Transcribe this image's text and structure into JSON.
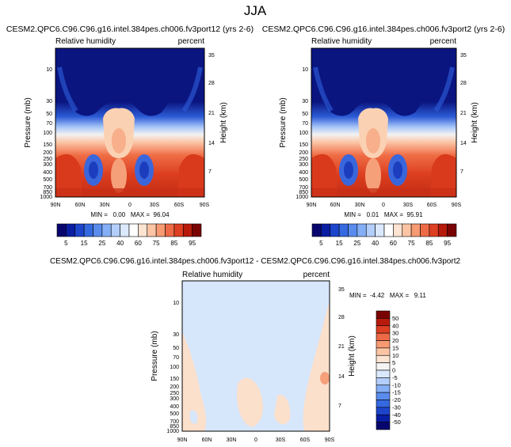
{
  "page_title": "JJA",
  "chart_data": [
    {
      "type": "heatmap",
      "title": "CESM2.QPC6.C96.C96.g16.intel.384pes.ch006.fv3port12 (yrs 2-6)",
      "left_label": "Relative humidity",
      "right_label": "percent",
      "xlabel": "",
      "ylabel": "Pressure (mb)",
      "y2label": "Height (km)",
      "x_ticks": [
        "90N",
        "60N",
        "30N",
        "0",
        "30S",
        "60S",
        "90S"
      ],
      "y_ticks": [
        "10",
        "30",
        "50",
        "70",
        "100",
        "150",
        "200",
        "250",
        "300",
        "400",
        "500",
        "700",
        "850",
        "1000"
      ],
      "y2_ticks": [
        "35",
        "28",
        "21",
        "14",
        "7"
      ],
      "ylim": [
        1000,
        3
      ],
      "stats": "MIN =   0.00   MAX =  96.04",
      "min": 0.0,
      "max": 96.04,
      "colorbar": {
        "orientation": "horizontal",
        "labels": [
          "5",
          "15",
          "25",
          "40",
          "60",
          "75",
          "85",
          "95"
        ],
        "levels": [
          5,
          10,
          15,
          20,
          25,
          30,
          40,
          50,
          60,
          70,
          75,
          80,
          85,
          90,
          95
        ]
      }
    },
    {
      "type": "heatmap",
      "title": "CESM2.QPC6.C96.C96.g16.intel.384pes.ch006.fv3port2 (yrs 2-6)",
      "left_label": "Relative humidity",
      "right_label": "percent",
      "xlabel": "",
      "ylabel": "Pressure (mb)",
      "y2label": "Height (km)",
      "x_ticks": [
        "90N",
        "60N",
        "30N",
        "0",
        "30S",
        "60S",
        "90S"
      ],
      "y_ticks": [
        "10",
        "30",
        "50",
        "70",
        "100",
        "150",
        "200",
        "250",
        "300",
        "400",
        "500",
        "700",
        "850",
        "1000"
      ],
      "y2_ticks": [
        "35",
        "28",
        "21",
        "14",
        "7"
      ],
      "ylim": [
        1000,
        3
      ],
      "stats": "MIN =   0.01   MAX =  95.91",
      "min": 0.01,
      "max": 95.91,
      "colorbar": {
        "orientation": "horizontal",
        "labels": [
          "5",
          "15",
          "25",
          "40",
          "60",
          "75",
          "85",
          "95"
        ],
        "levels": [
          5,
          10,
          15,
          20,
          25,
          30,
          40,
          50,
          60,
          70,
          75,
          80,
          85,
          90,
          95
        ]
      }
    },
    {
      "type": "heatmap",
      "title": "CESM2.QPC6.C96.C96.g16.intel.384pes.ch006.fv3port12 - CESM2.QPC6.C96.C96.g16.intel.384pes.ch006.fv3port2",
      "left_label": "Relative humidity",
      "right_label": "percent",
      "xlabel": "",
      "ylabel": "Pressure (mb)",
      "y2label": "Height (km)",
      "x_ticks": [
        "90N",
        "60N",
        "30N",
        "0",
        "30S",
        "60S",
        "90S"
      ],
      "y_ticks": [
        "10",
        "30",
        "50",
        "70",
        "100",
        "150",
        "200",
        "250",
        "300",
        "400",
        "500",
        "700",
        "850",
        "1000"
      ],
      "y2_ticks": [
        "35",
        "28",
        "21",
        "14",
        "7"
      ],
      "ylim": [
        1000,
        3
      ],
      "stats": "MIN =  -4.42   MAX =   9.11",
      "min": -4.42,
      "max": 9.11,
      "colorbar": {
        "orientation": "vertical",
        "labels": [
          "50",
          "40",
          "30",
          "20",
          "15",
          "10",
          "5",
          "0",
          "-5",
          "-10",
          "-15",
          "-20",
          "-30",
          "-40",
          "-50"
        ],
        "levels": [
          50,
          40,
          30,
          20,
          15,
          10,
          5,
          0,
          -5,
          -10,
          -15,
          -20,
          -30,
          -40,
          -50
        ]
      }
    }
  ],
  "colors": {
    "abs_scale": [
      "#08066e",
      "#0a1ea3",
      "#1d45cc",
      "#3569e0",
      "#5a8cee",
      "#84aef5",
      "#b3cefa",
      "#dbe9ff",
      "#ffffff",
      "#fde3d2",
      "#fbc4a4",
      "#f69a72",
      "#ee6a46",
      "#dd3f22",
      "#b81a0b",
      "#7a0403"
    ],
    "diff_scale": [
      "#7a0403",
      "#b81a0b",
      "#dd3f22",
      "#ee6a46",
      "#f69a72",
      "#fbc4a4",
      "#fde3d2",
      "#f4f4f4",
      "#dbe9ff",
      "#b3cefa",
      "#84aef5",
      "#5a8cee",
      "#3569e0",
      "#1d45cc",
      "#0a1ea3",
      "#08066e"
    ]
  }
}
